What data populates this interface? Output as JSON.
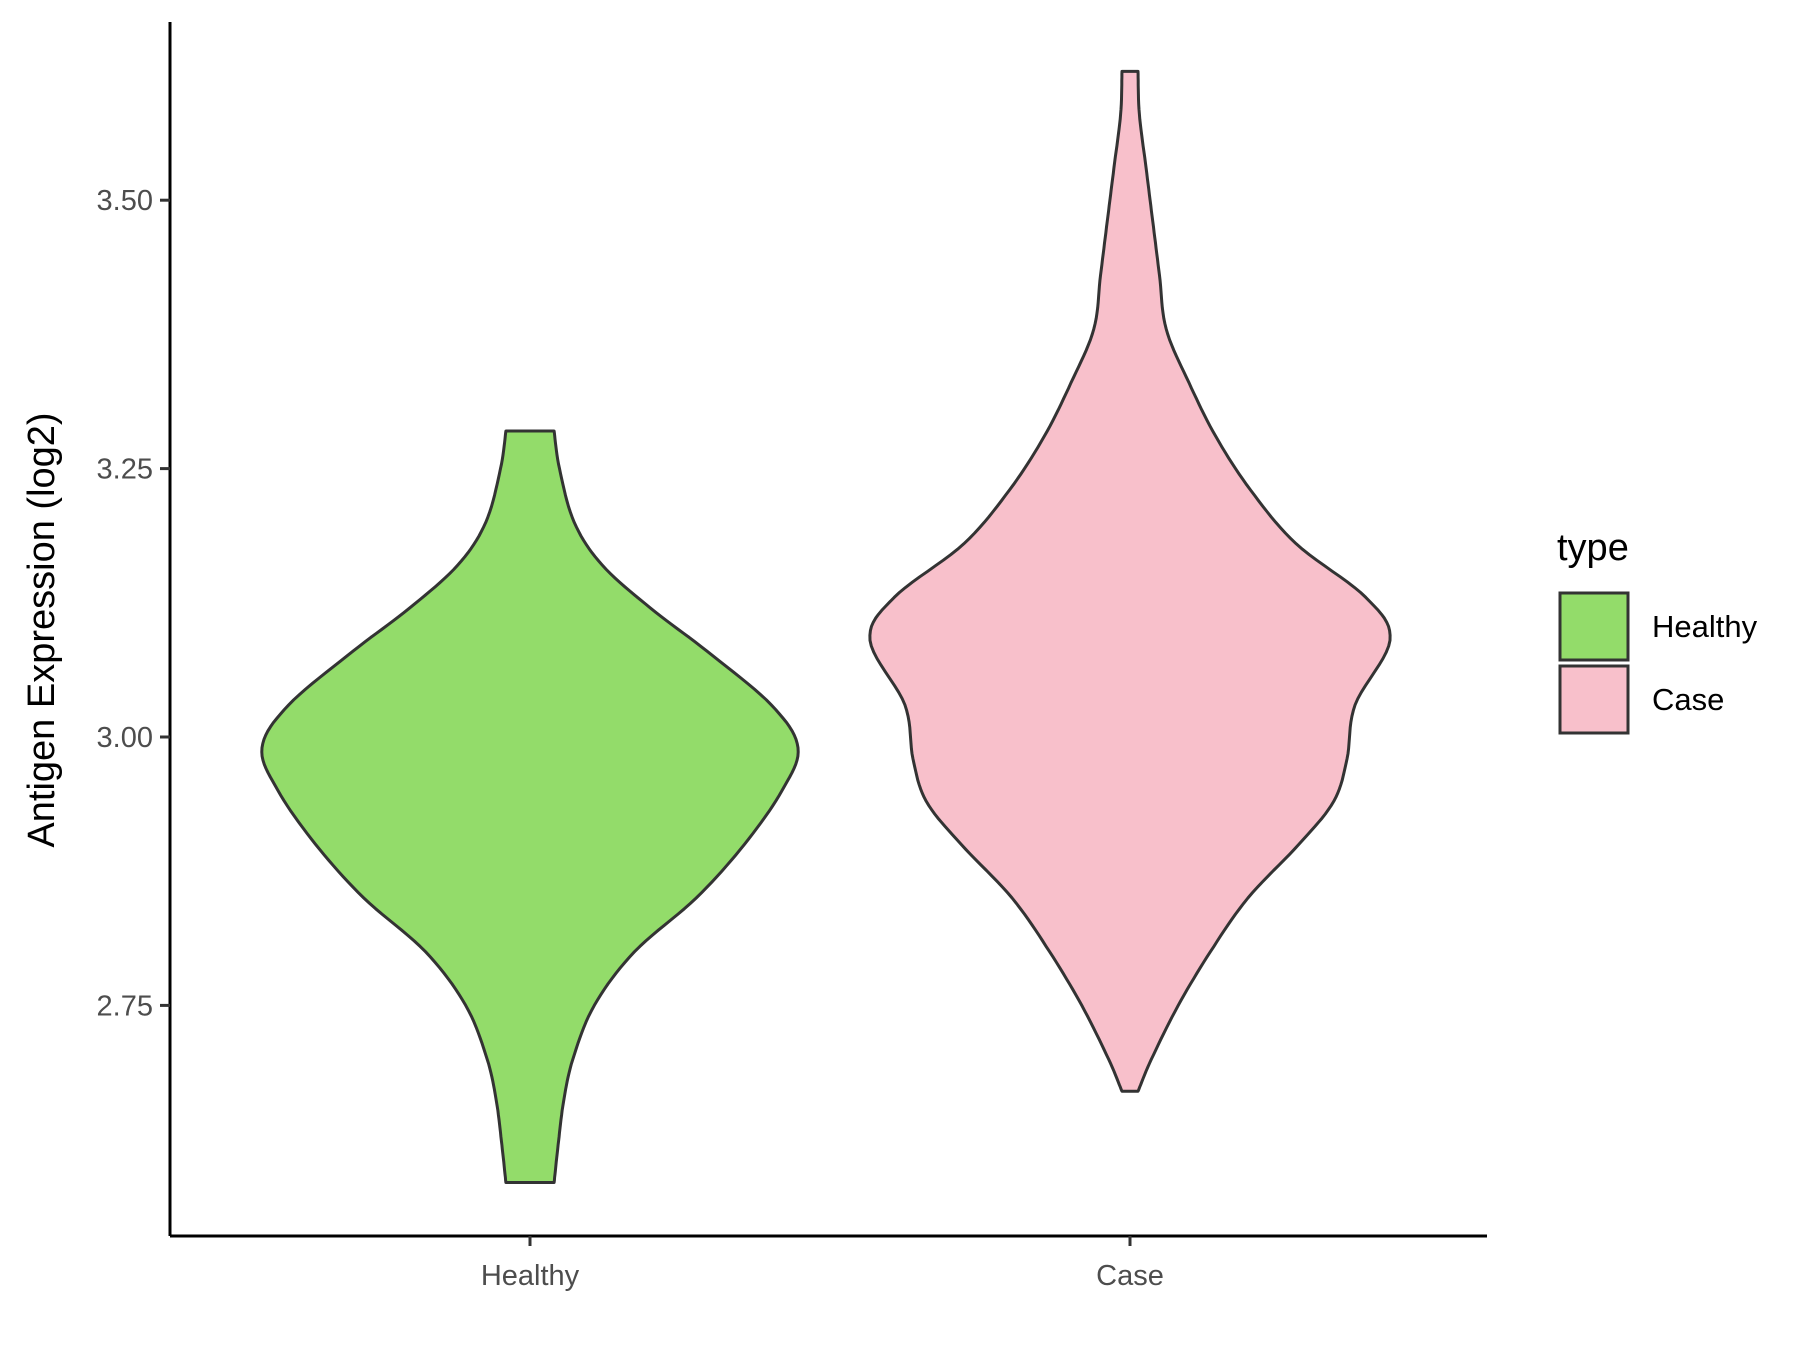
{
  "chart_data": {
    "type": "violin",
    "title": "",
    "xlabel": "",
    "ylabel": "Antigen Expression (log2)",
    "ylim": [
      2.535,
      3.67
    ],
    "y_ticks": [
      "2.75",
      "3.00",
      "3.25",
      "3.50"
    ],
    "categories": [
      "Healthy",
      "Case"
    ],
    "grid": false,
    "legend": {
      "title": "type",
      "position": "right",
      "entries": [
        "Healthy",
        "Case"
      ]
    },
    "series": [
      {
        "name": "Healthy",
        "color": "#93DC6A",
        "min": 2.585,
        "max": 3.285,
        "density": [
          [
            2.585,
            0.09
          ],
          [
            2.62,
            0.105
          ],
          [
            2.66,
            0.125
          ],
          [
            2.7,
            0.16
          ],
          [
            2.75,
            0.24
          ],
          [
            2.8,
            0.39
          ],
          [
            2.85,
            0.62
          ],
          [
            2.9,
            0.8
          ],
          [
            2.95,
            0.94
          ],
          [
            2.99,
            1.0
          ],
          [
            3.03,
            0.9
          ],
          [
            3.08,
            0.66
          ],
          [
            3.12,
            0.45
          ],
          [
            3.16,
            0.27
          ],
          [
            3.2,
            0.165
          ],
          [
            3.25,
            0.11
          ],
          [
            3.285,
            0.09
          ]
        ]
      },
      {
        "name": "Case",
        "color": "#F8C0CB",
        "min": 2.67,
        "max": 3.62,
        "density": [
          [
            2.67,
            0.03
          ],
          [
            2.7,
            0.08
          ],
          [
            2.75,
            0.18
          ],
          [
            2.8,
            0.3
          ],
          [
            2.85,
            0.44
          ],
          [
            2.9,
            0.63
          ],
          [
            2.94,
            0.76
          ],
          [
            2.98,
            0.81
          ],
          [
            3.03,
            0.84
          ],
          [
            3.09,
            0.97
          ],
          [
            3.13,
            0.88
          ],
          [
            3.18,
            0.62
          ],
          [
            3.23,
            0.45
          ],
          [
            3.28,
            0.32
          ],
          [
            3.33,
            0.22
          ],
          [
            3.38,
            0.135
          ],
          [
            3.43,
            0.11
          ],
          [
            3.48,
            0.085
          ],
          [
            3.53,
            0.06
          ],
          [
            3.58,
            0.035
          ],
          [
            3.62,
            0.03
          ]
        ]
      }
    ]
  }
}
